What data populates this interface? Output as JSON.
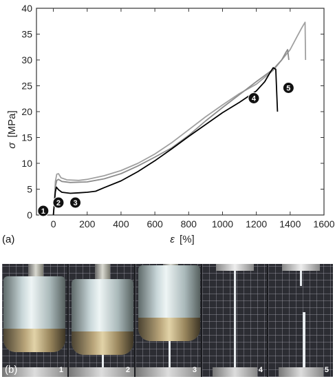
{
  "panel_a_label": "(a)",
  "panel_b_label": "(b)",
  "chart_data": {
    "type": "line",
    "xlabel_symbol": "ε",
    "xlabel_unit": "[%]",
    "ylabel_symbol": "σ",
    "ylabel_unit": "[MPa]",
    "xlim": [
      -100,
      1600
    ],
    "ylim": [
      0,
      40
    ],
    "xticks": [
      0,
      200,
      400,
      600,
      800,
      1000,
      1200,
      1400,
      1600
    ],
    "yticks": [
      0,
      5,
      10,
      15,
      20,
      25,
      30,
      35,
      40
    ],
    "grid": false,
    "series": [
      {
        "color": "#a0a0a0",
        "points": [
          [
            0,
            0
          ],
          [
            5,
            2
          ],
          [
            12,
            6.5
          ],
          [
            20,
            7.9
          ],
          [
            30,
            8.0
          ],
          [
            45,
            7.2
          ],
          [
            80,
            6.8
          ],
          [
            150,
            6.7
          ],
          [
            200,
            6.9
          ],
          [
            300,
            7.6
          ],
          [
            400,
            8.6
          ],
          [
            500,
            10.0
          ],
          [
            600,
            11.8
          ],
          [
            700,
            14.0
          ],
          [
            800,
            16.5
          ],
          [
            900,
            19.0
          ],
          [
            1000,
            21.3
          ],
          [
            1100,
            23.5
          ],
          [
            1200,
            25.3
          ],
          [
            1300,
            28.0
          ],
          [
            1350,
            30.0
          ],
          [
            1400,
            32.0
          ],
          [
            1440,
            34.5
          ],
          [
            1470,
            36.3
          ],
          [
            1488,
            37.3
          ],
          [
            1491,
            30.0
          ]
        ]
      },
      {
        "color": "#8c8c8c",
        "points": [
          [
            0,
            0
          ],
          [
            5,
            2
          ],
          [
            12,
            5.5
          ],
          [
            20,
            6.7
          ],
          [
            30,
            6.9
          ],
          [
            50,
            6.5
          ],
          [
            100,
            6.3
          ],
          [
            200,
            6.4
          ],
          [
            300,
            7.0
          ],
          [
            400,
            8.0
          ],
          [
            500,
            9.5
          ],
          [
            600,
            11.2
          ],
          [
            700,
            13.0
          ],
          [
            800,
            15.4
          ],
          [
            900,
            18.2
          ],
          [
            1000,
            20.8
          ],
          [
            1100,
            23.3
          ],
          [
            1200,
            25.8
          ],
          [
            1300,
            28.2
          ],
          [
            1350,
            30.0
          ],
          [
            1375,
            31.5
          ],
          [
            1385,
            32.0
          ],
          [
            1392,
            30.0
          ]
        ]
      },
      {
        "color": "#000000",
        "points": [
          [
            0,
            0
          ],
          [
            5,
            2
          ],
          [
            12,
            4.5
          ],
          [
            18,
            5.4
          ],
          [
            30,
            4.9
          ],
          [
            50,
            4.4
          ],
          [
            100,
            4.2
          ],
          [
            150,
            4.3
          ],
          [
            200,
            4.4
          ],
          [
            250,
            4.6
          ],
          [
            300,
            5.3
          ],
          [
            400,
            6.6
          ],
          [
            500,
            8.4
          ],
          [
            600,
            10.5
          ],
          [
            700,
            12.8
          ],
          [
            800,
            15.2
          ],
          [
            900,
            17.5
          ],
          [
            1000,
            19.8
          ],
          [
            1100,
            21.8
          ],
          [
            1200,
            24.0
          ],
          [
            1250,
            25.8
          ],
          [
            1280,
            27.5
          ],
          [
            1300,
            28.5
          ],
          [
            1315,
            28.2
          ],
          [
            1325,
            20.0
          ]
        ]
      }
    ],
    "markers": [
      {
        "label": "1",
        "x": -60,
        "y": 0.8
      },
      {
        "label": "2",
        "x": 30,
        "y": 2.4
      },
      {
        "label": "3",
        "x": 130,
        "y": 2.4
      },
      {
        "label": "4",
        "x": 1185,
        "y": 22.6
      },
      {
        "label": "5",
        "x": 1390,
        "y": 24.6
      }
    ]
  },
  "photos": [
    {
      "label": "1",
      "stage": "initial"
    },
    {
      "label": "2",
      "stage": "yield"
    },
    {
      "label": "3",
      "stage": "necking"
    },
    {
      "label": "4",
      "stage": "stretched"
    },
    {
      "label": "5",
      "stage": "fractured"
    }
  ]
}
